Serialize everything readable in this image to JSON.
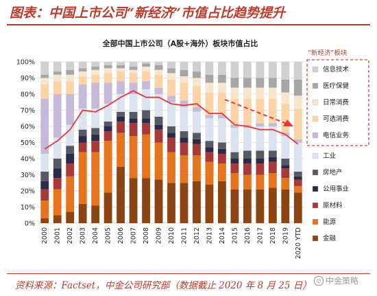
{
  "header": {
    "title": "图表：中国上市公司“新经济”市值占比趋势提升"
  },
  "footer": {
    "source": "资料来源：Factset，中金公司研究部（数据截止 2020 年 8 月 25 日）",
    "watermark": "中金策略"
  },
  "colors": {
    "financial": "#8b4513",
    "energy": "#e6731e",
    "materials": "#a63a3a",
    "utilities": "#2b2a49",
    "real_estate": "#555a63",
    "industrials": "#dbe3ef",
    "telecom": "#c7bad9",
    "consumer_disc": "#fcd2a7",
    "consumer_staples": "#f7e6cf",
    "healthcare": "#a6a6a6",
    "it": "#d0d0d0",
    "line": "#e63737",
    "arrow": "#e63737",
    "legend_box": "#e63737"
  },
  "chart_data": {
    "type": "bar",
    "stacked": true,
    "title": "全部中国上市公司（A股+海外）板块市值占比",
    "ylim": [
      0,
      100
    ],
    "yticks": [
      "0%",
      "10%",
      "20%",
      "30%",
      "40%",
      "50%",
      "60%",
      "70%",
      "80%",
      "90%",
      "100%"
    ],
    "grid": true,
    "categories": [
      "2000",
      "2001",
      "2002",
      "2003",
      "2004",
      "2005",
      "2006",
      "2007",
      "2008",
      "2009",
      "2010",
      "2011",
      "2012",
      "2013",
      "2014",
      "2015",
      "2016",
      "2017",
      "2018",
      "2019",
      "2020 YTD"
    ],
    "series": [
      {
        "name": "金融",
        "key": "financial",
        "values": [
          3,
          5,
          7,
          12,
          11,
          19,
          35,
          28,
          28,
          27,
          25,
          25,
          26,
          24,
          26,
          21,
          21,
          21,
          22,
          21,
          19
        ]
      },
      {
        "name": "能源",
        "key": "energy",
        "values": [
          11,
          16,
          22,
          32,
          33,
          32,
          21,
          26,
          27,
          23,
          19,
          17,
          16,
          14,
          11,
          10,
          9,
          9,
          9,
          7,
          4
        ]
      },
      {
        "name": "原材料",
        "key": "materials",
        "values": [
          7,
          7,
          8,
          6,
          7,
          6,
          7,
          8,
          7,
          8,
          9,
          8,
          7,
          6,
          6,
          6,
          7,
          7,
          7,
          6,
          4
        ]
      },
      {
        "name": "公用事业",
        "key": "utilities",
        "values": [
          5,
          6,
          6,
          4,
          4,
          3,
          3,
          3,
          3,
          3,
          3,
          3,
          3,
          3,
          3,
          3,
          3,
          3,
          3,
          2,
          2
        ]
      },
      {
        "name": "房地产",
        "key": "real_estate",
        "values": [
          6,
          6,
          5,
          4,
          4,
          3,
          3,
          4,
          5,
          5,
          4,
          4,
          4,
          4,
          4,
          4,
          5,
          5,
          4,
          4,
          3
        ]
      },
      {
        "name": "工业",
        "key": "industrials",
        "values": [
          11,
          13,
          13,
          13,
          12,
          11,
          11,
          11,
          13,
          14,
          15,
          15,
          13,
          14,
          15,
          15,
          14,
          15,
          15,
          14,
          18
        ]
      },
      {
        "name": "电信业务",
        "key": "telecom",
        "values": [
          34,
          27,
          19,
          15,
          16,
          13,
          8,
          7,
          5,
          4,
          4,
          4,
          3,
          2,
          2,
          2,
          2,
          2,
          2,
          2,
          2
        ]
      },
      {
        "name": "可选消费",
        "key": "consumer_disc",
        "values": [
          9,
          8,
          8,
          5,
          5,
          6,
          6,
          6,
          6,
          8,
          10,
          11,
          13,
          14,
          14,
          16,
          16,
          15,
          15,
          18,
          19
        ]
      },
      {
        "name": "日常消费",
        "key": "consumer_staples",
        "values": [
          4,
          4,
          4,
          3,
          3,
          3,
          2,
          2,
          3,
          3,
          4,
          4,
          5,
          6,
          6,
          7,
          7,
          7,
          7,
          7,
          8
        ]
      },
      {
        "name": "医疗保健",
        "key": "healthcare",
        "values": [
          2,
          2,
          3,
          2,
          2,
          2,
          2,
          2,
          2,
          3,
          3,
          4,
          4,
          5,
          5,
          6,
          6,
          6,
          6,
          8,
          10
        ]
      },
      {
        "name": "信息技术",
        "key": "it",
        "values": [
          8,
          6,
          5,
          4,
          3,
          2,
          2,
          3,
          1,
          2,
          4,
          5,
          6,
          8,
          8,
          10,
          10,
          10,
          10,
          11,
          11
        ]
      }
    ],
    "line": {
      "name": "",
      "values": [
        46,
        51,
        58,
        70,
        69,
        73,
        78,
        82,
        78,
        78,
        74,
        73,
        74,
        68,
        68,
        61,
        60,
        58,
        58,
        55,
        49
      ]
    },
    "legend": {
      "boxed": [
        "信息技术",
        "医疗保健",
        "日常消费",
        "可选消费",
        "电信业务"
      ],
      "boxed_label": "“新经济”板块",
      "others": [
        "工业",
        "房地产",
        "公用事业",
        "原材料",
        "能源",
        "金融"
      ]
    }
  }
}
